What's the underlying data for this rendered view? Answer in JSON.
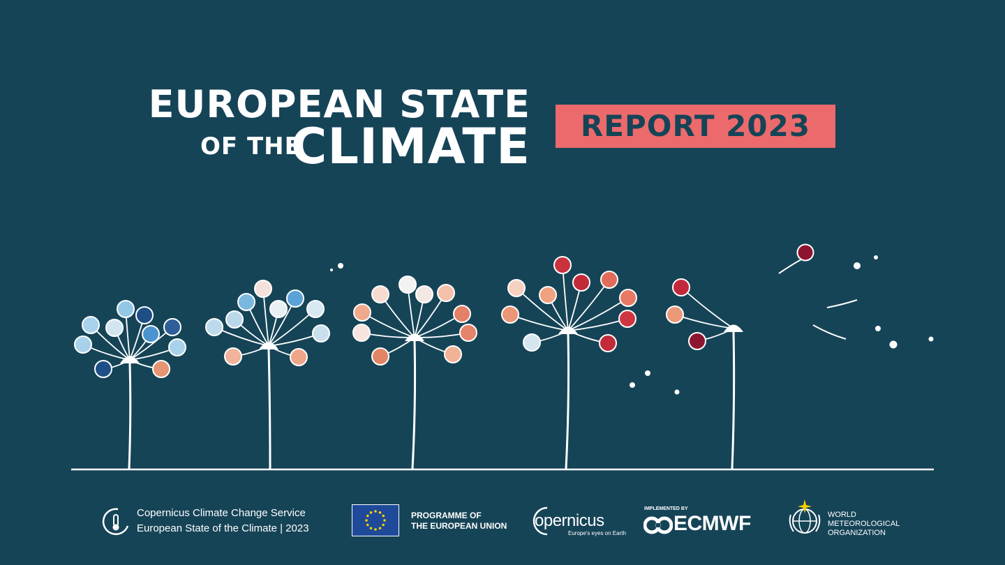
{
  "title": {
    "line1": "EUROPEAN STATE",
    "line2_small": "OF THE",
    "line2_large": "CLIMATE"
  },
  "badge": {
    "label": "REPORT 2023"
  },
  "footer": {
    "c3s": {
      "line1": "Copernicus Climate Change Service",
      "line2": "European State of the Climate | 2023"
    },
    "eu": {
      "line1": "PROGRAMME OF",
      "line2": "THE EUROPEAN UNION"
    },
    "copernicus": {
      "name": "opernicus",
      "tagline": "Europe's eyes on Earth"
    },
    "ecmwf": {
      "implemented_by": "IMPLEMENTED BY",
      "name": "ECMWF"
    },
    "wmo": {
      "line1": "WORLD",
      "line2": "METEOROLOGICAL",
      "line3": "ORGANIZATION"
    }
  },
  "colors": {
    "background": "#164457",
    "accent": "#ec6a6c",
    "eu_blue": "#1f4a9a",
    "eu_stars": "#f5d000"
  },
  "icons": [
    "thermometer-cloud-icon",
    "eu-flag-icon",
    "copernicus-swoosh-icon",
    "ecmwf-mark-icon",
    "wmo-emblem-icon"
  ]
}
